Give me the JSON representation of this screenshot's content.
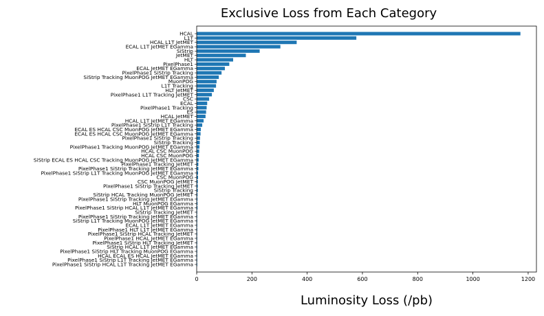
{
  "chart_data": {
    "type": "bar",
    "orientation": "horizontal",
    "title": "Exclusive Loss from Each Category",
    "xlabel": "Luminosity Loss (/pb)",
    "ylabel": "",
    "xlim": [
      0,
      1230
    ],
    "xticks": [
      0,
      200,
      400,
      600,
      800,
      1000,
      1200
    ],
    "grid": false,
    "bar_color": "#1f77b4",
    "categories": [
      "HCAL",
      "L1T",
      "HCAL L1T JetMET",
      "ECAL L1T JetMET EGamma",
      "SiStrip",
      "JetMET",
      "HLT",
      "PixelPhase1",
      "ECAL JetMET EGamma",
      "PixelPhase1 SiStrip Tracking",
      "SiStrip Tracking MuonPOG JetMET EGamma",
      "MuonPOG",
      "L1T Tracking",
      "HLT JetMET",
      "PixelPhase1 L1T Tracking JetMET",
      "CSC",
      "ECAL",
      "PixelPhase1 Tracking",
      "ES",
      "HCAL JetMET",
      "HCAL L1T JetMET EGamma",
      "PixelPhase1 SiStrip L1T Tracking",
      "ECAL ES HCAL CSC MuonPOG JetMET EGamma",
      "ECAL ES HCAL CSC MuonPOG JetMET EGamma",
      "PixelPhase1 SiStrip Tracking",
      "SiStrip Tracking",
      "PixelPhase1 Tracking MuonPOG JetMET EGamma",
      "HCAL CSC MuonPOG",
      "HCAL CSC MuonPOG",
      "SiStrip ECAL ES HCAL CSC Tracking MuonPOG JetMET EGamma",
      "PixelPhase1 Tracking JetMET",
      "PixelPhase1 SiStrip Tracking JetMET EGamma",
      "PixelPhase1 SiStrip L1T Tracking MuonPOG JetMET EGamma",
      "CSC MuonPOG",
      "CSC MuonPOG JetMET",
      "PixelPhase1 SiStrip Tracking JetMET",
      "SiStrip Tracking",
      "SiStrip HCAL Tracking MuonPOG JetMET",
      "PixelPhase1 SiStrip Tracking JetMET EGamma",
      "HLT MuonPOG EGamma",
      "PixelPhase1 SiStrip HCAL L1T JetMET EGamma",
      "SiStrip Tracking JetMET",
      "PixelPhase1 SiStrip Tracking JetMET EGamma",
      "SiStrip L1T Tracking MuonPOG JetMET EGamma",
      "ECAL L1T JetMET EGamma",
      "PixelPhase1 HLT L1T JetMET EGamma",
      "PixelPhase1 SiStrip HCAL Tracking JetMET",
      "PixelPhase1 HCAL JetMET EGamma",
      "PixelPhase1 SiStrip HLT Tracking JetMET",
      "SiStrip HCAL L1T JetMET EGamma",
      "PixelPhase1 SiStrip HLT Tracking MuonPOG EGamma",
      "HCAL ECAL ES HCAL JetMET EGamma",
      "PixelPhase1 SiStrip L1T Tracking JetMET EGamma",
      "PixelPhase1 SiStrip HCAL L1T Tracking JetMET EGamma"
    ],
    "values": [
      1172,
      578,
      362,
      303,
      228,
      178,
      132,
      118,
      102,
      90,
      80,
      72,
      70,
      62,
      55,
      45,
      38,
      36,
      34,
      32,
      25,
      20,
      15,
      14,
      12,
      11,
      10,
      9,
      8,
      7,
      6,
      6,
      5,
      5,
      4,
      4,
      4,
      3,
      3,
      3,
      3,
      2,
      2,
      2,
      2,
      2,
      2,
      2,
      1,
      1,
      1,
      1,
      1,
      1
    ]
  }
}
